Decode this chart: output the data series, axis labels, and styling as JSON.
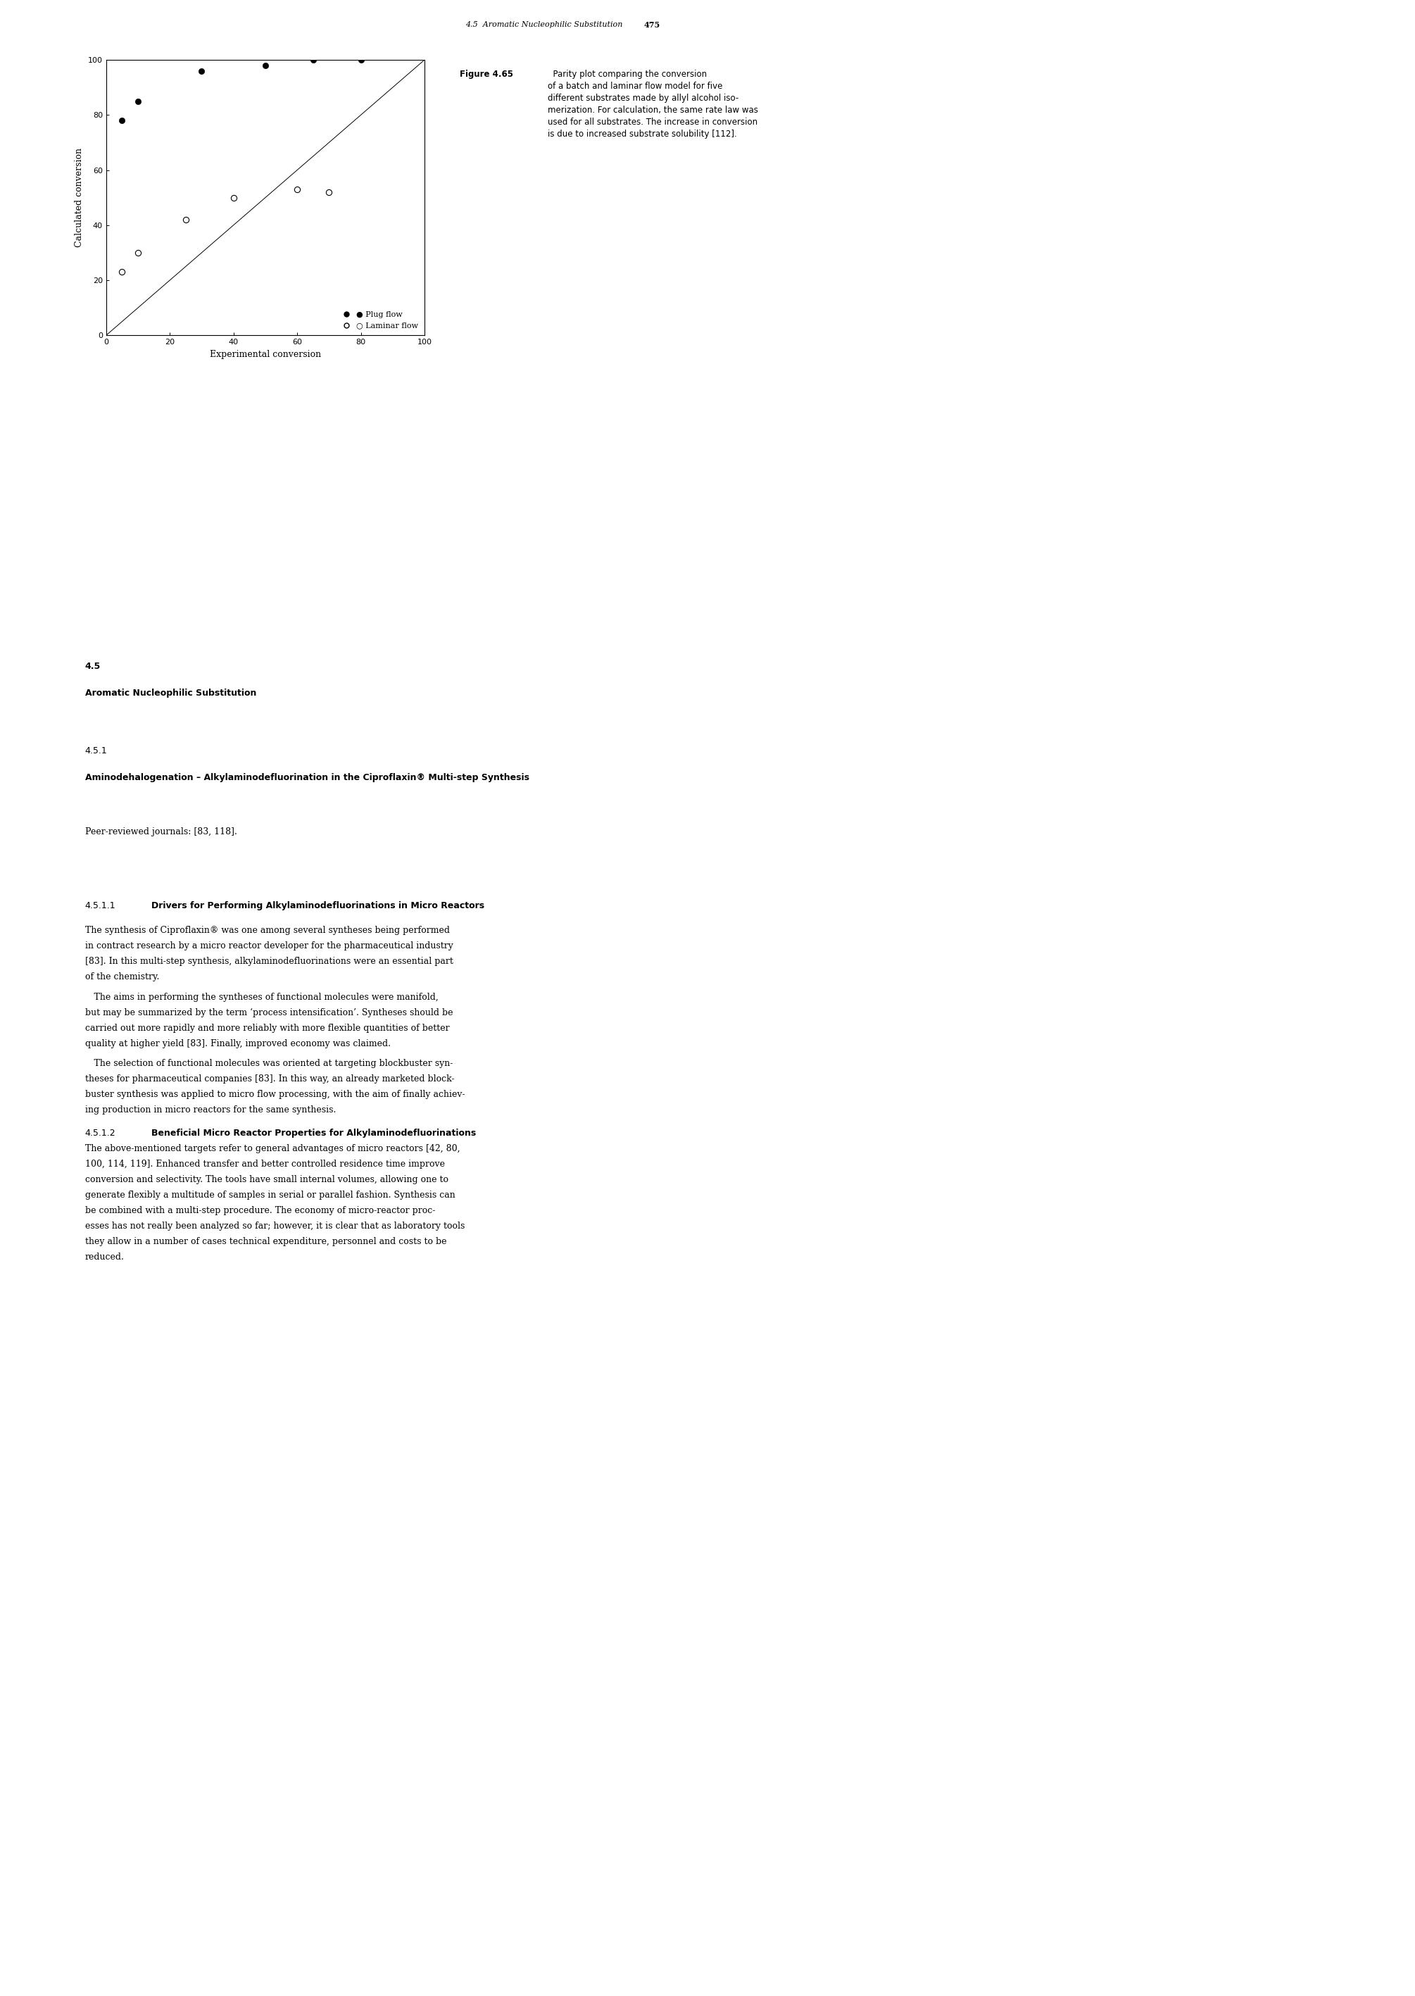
{
  "plug_flow_x": [
    5,
    10,
    30,
    50,
    65,
    80
  ],
  "plug_flow_y": [
    78,
    85,
    96,
    98,
    100,
    100
  ],
  "laminar_flow_x": [
    5,
    10,
    25,
    40,
    60,
    70
  ],
  "laminar_flow_y": [
    23,
    30,
    42,
    50,
    53,
    52
  ],
  "parity_line_x": [
    0,
    100
  ],
  "parity_line_y": [
    0,
    100
  ],
  "xlabel": "Experimental conversion",
  "ylabel": "Calculated conversion",
  "xlim": [
    0,
    100
  ],
  "ylim": [
    0,
    100
  ],
  "xticks": [
    0,
    20,
    40,
    60,
    80,
    100
  ],
  "yticks": [
    0,
    20,
    40,
    60,
    80,
    100
  ],
  "plug_flow_label": "● Plug flow",
  "laminar_flow_label": "○ Laminar flow",
  "caption_bold": "Figure 4.65",
  "caption_normal": " Parity plot comparing the conversion of a batch and laminar flow model for five different substrates made by allyl alcohol iso-merization. For calculation, the same rate law was used for all substrates. The increase in conversion is due to increased substrate solubility [112].",
  "header_text": "4.5  Aromatic Nucleophilic Substitution",
  "page_number": "475",
  "background_color": "#ffffff",
  "line_color": "#000000",
  "font_size_axis": 9,
  "font_size_tick": 8,
  "font_size_legend": 8,
  "font_size_body": 9,
  "font_size_caption": 8.5,
  "font_size_header": 8,
  "marker_size": 35
}
